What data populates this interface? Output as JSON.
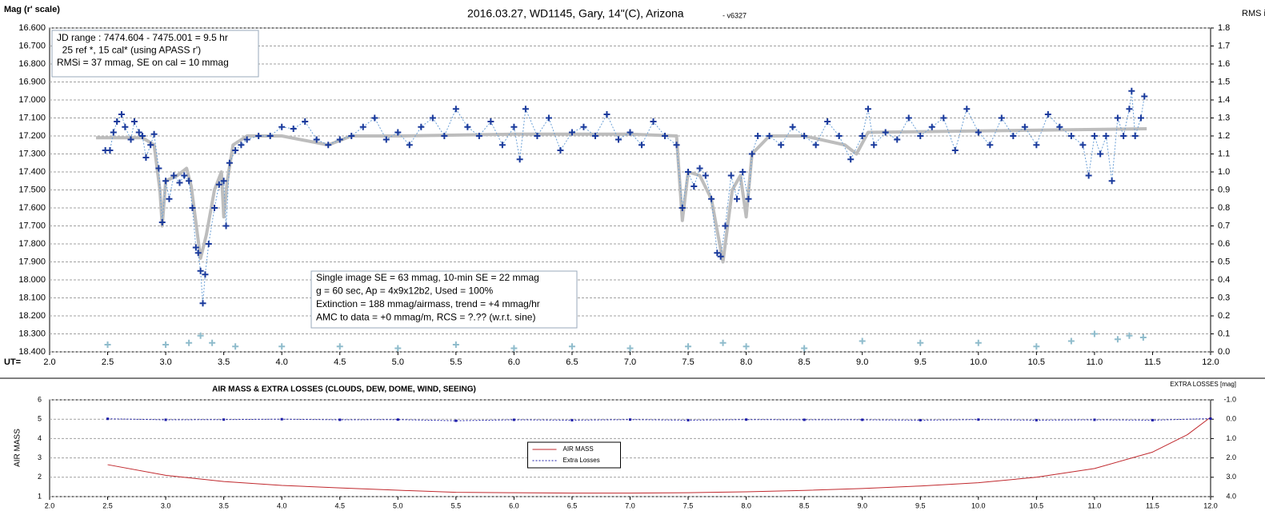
{
  "chart_data": [
    {
      "type": "line",
      "title": "2016.03.27,  WD1145, Gary, 14\"(C), Arizona",
      "subtitle": "- v6327",
      "ylabel": "Mag (r' scale)",
      "y2label": "RMS i",
      "xlabel": "UT=",
      "annotations": [
        {
          "lines": [
            "JD range : 7474.604 - 7475.001 = 9.5 hr",
            "  25 ref *, 15 cal* (using APASS r')",
            "RMSi = 37 mmag, SE on cal = 10 mmag"
          ]
        },
        {
          "lines": [
            "Single image SE = 63 mmag, 10-min SE = 22 mmag",
            "g = 60 sec, Ap = 4x9x12b2, Used = 100%",
            "Extinction = 188 mmag/airmass, trend = +4 mmag/hr",
            "AMC to data = +0 mmag/m, RCS = ?.?? (w.r.t. sine)"
          ]
        }
      ],
      "xlim": [
        2,
        12
      ],
      "xticks": [
        {
          "value": 2,
          "label": "2.0"
        },
        2.5,
        {
          "value": 3,
          "label": "3.0"
        },
        3.5,
        {
          "value": 4,
          "label": "4.0"
        },
        4.5,
        {
          "value": 5,
          "label": "5.0"
        },
        5.5,
        {
          "value": 6,
          "label": "6.0"
        },
        6.5,
        {
          "value": 7,
          "label": "7.0"
        },
        7.5,
        {
          "value": 8,
          "label": "8.0"
        },
        8.5,
        {
          "value": 9,
          "label": "9.0"
        },
        9.5,
        {
          "value": 10,
          "label": "10.0"
        },
        10.5,
        {
          "value": 11,
          "label": "11.0"
        },
        11.5,
        {
          "value": 12,
          "label": "12.0"
        }
      ],
      "ylim": [
        18.4,
        16.6
      ],
      "yticks": [
        {
          "value": 16.6,
          "label": "16.600"
        },
        {
          "value": 16.7,
          "label": "16.700"
        },
        {
          "value": 16.8,
          "label": "16.800"
        },
        {
          "value": 16.9,
          "label": "16.900"
        },
        {
          "value": 17.0,
          "label": "17.000"
        },
        {
          "value": 17.1,
          "label": "17.100"
        },
        {
          "value": 17.2,
          "label": "17.200"
        },
        {
          "value": 17.3,
          "label": "17.300"
        },
        {
          "value": 17.4,
          "label": "17.400"
        },
        {
          "value": 17.5,
          "label": "17.500"
        },
        {
          "value": 17.6,
          "label": "17.600"
        },
        {
          "value": 17.7,
          "label": "17.700"
        },
        {
          "value": 17.8,
          "label": "17.800"
        },
        {
          "value": 17.9,
          "label": "17.900"
        },
        {
          "value": 18.0,
          "label": "18.000"
        },
        {
          "value": 18.1,
          "label": "18.100"
        },
        {
          "value": 18.2,
          "label": "18.200"
        },
        {
          "value": 18.3,
          "label": "18.300"
        },
        {
          "value": 18.4,
          "label": "18.400"
        }
      ],
      "y2lim": [
        0,
        1.8
      ],
      "y2ticks": [
        {
          "value": 0,
          "label": "0.0"
        },
        0.1,
        0.2,
        0.3,
        0.4,
        0.5,
        0.6,
        0.7,
        0.8,
        0.9,
        {
          "value": 1,
          "label": "1.0"
        },
        1.1,
        1.2,
        1.3,
        1.4,
        1.5,
        1.6,
        1.7,
        1.8
      ],
      "grid": "horizontal",
      "series": [
        {
          "color": "#bdbdbd",
          "marker": "none",
          "line": "solid",
          "line_width": 4,
          "x": [
            2.4,
            2.8,
            2.9,
            2.95,
            2.97,
            3.0,
            3.1,
            3.18,
            3.22,
            3.3,
            3.35,
            3.42,
            3.48,
            3.5,
            3.53,
            3.58,
            3.7,
            4.0,
            4.4,
            4.6,
            5.0,
            6.0,
            7.0,
            7.4,
            7.45,
            7.5,
            7.6,
            7.7,
            7.8,
            7.88,
            7.95,
            8.0,
            8.05,
            8.2,
            8.5,
            8.85,
            8.95,
            9.05,
            11.45
          ],
          "values": [
            17.21,
            17.21,
            17.25,
            17.5,
            17.7,
            17.45,
            17.42,
            17.38,
            17.48,
            17.88,
            17.75,
            17.5,
            17.4,
            17.65,
            17.45,
            17.25,
            17.2,
            17.2,
            17.25,
            17.2,
            17.2,
            17.19,
            17.19,
            17.2,
            17.67,
            17.4,
            17.42,
            17.55,
            17.9,
            17.5,
            17.42,
            17.65,
            17.3,
            17.2,
            17.2,
            17.25,
            17.3,
            17.18,
            17.16
          ]
        },
        {
          "color": "#1a3a9c",
          "line_color": "#6a9fd6",
          "marker": "plus",
          "line": "dotted",
          "line_width": 1,
          "x": [
            2.48,
            2.52,
            2.55,
            2.58,
            2.62,
            2.65,
            2.7,
            2.73,
            2.77,
            2.8,
            2.83,
            2.87,
            2.9,
            2.94,
            2.97,
            3.0,
            3.03,
            3.07,
            3.12,
            3.16,
            3.2,
            3.23,
            3.26,
            3.28,
            3.3,
            3.32,
            3.34,
            3.37,
            3.42,
            3.46,
            3.5,
            3.52,
            3.55,
            3.6,
            3.65,
            3.7,
            3.8,
            3.9,
            4.0,
            4.1,
            4.2,
            4.3,
            4.4,
            4.5,
            4.6,
            4.7,
            4.8,
            4.9,
            5.0,
            5.1,
            5.2,
            5.3,
            5.4,
            5.5,
            5.6,
            5.7,
            5.8,
            5.9,
            6.0,
            6.05,
            6.1,
            6.2,
            6.3,
            6.4,
            6.5,
            6.6,
            6.7,
            6.8,
            6.9,
            7.0,
            7.1,
            7.2,
            7.3,
            7.4,
            7.45,
            7.5,
            7.55,
            7.6,
            7.65,
            7.7,
            7.75,
            7.78,
            7.82,
            7.87,
            7.92,
            7.97,
            8.02,
            8.05,
            8.1,
            8.2,
            8.3,
            8.4,
            8.5,
            8.6,
            8.7,
            8.8,
            8.9,
            9.0,
            9.05,
            9.1,
            9.2,
            9.3,
            9.4,
            9.5,
            9.6,
            9.7,
            9.8,
            9.9,
            10.0,
            10.1,
            10.2,
            10.3,
            10.4,
            10.5,
            10.6,
            10.7,
            10.8,
            10.9,
            10.95,
            11.0,
            11.05,
            11.1,
            11.15,
            11.2,
            11.25,
            11.3,
            11.32,
            11.35,
            11.4,
            11.43
          ],
          "values": [
            17.28,
            17.28,
            17.18,
            17.12,
            17.08,
            17.15,
            17.22,
            17.12,
            17.18,
            17.2,
            17.32,
            17.25,
            17.19,
            17.38,
            17.68,
            17.45,
            17.55,
            17.42,
            17.46,
            17.42,
            17.45,
            17.6,
            17.82,
            17.85,
            17.95,
            18.13,
            17.97,
            17.8,
            17.6,
            17.47,
            17.45,
            17.7,
            17.35,
            17.28,
            17.25,
            17.22,
            17.2,
            17.2,
            17.15,
            17.16,
            17.12,
            17.22,
            17.25,
            17.22,
            17.2,
            17.15,
            17.1,
            17.22,
            17.18,
            17.25,
            17.15,
            17.1,
            17.2,
            17.05,
            17.15,
            17.2,
            17.12,
            17.25,
            17.15,
            17.33,
            17.05,
            17.2,
            17.1,
            17.28,
            17.18,
            17.15,
            17.2,
            17.08,
            17.22,
            17.18,
            17.25,
            17.12,
            17.2,
            17.25,
            17.6,
            17.4,
            17.48,
            17.38,
            17.42,
            17.55,
            17.85,
            17.87,
            17.7,
            17.42,
            17.55,
            17.4,
            17.55,
            17.3,
            17.2,
            17.2,
            17.25,
            17.15,
            17.2,
            17.25,
            17.12,
            17.2,
            17.33,
            17.2,
            17.05,
            17.25,
            17.18,
            17.22,
            17.1,
            17.2,
            17.15,
            17.1,
            17.28,
            17.05,
            17.18,
            17.25,
            17.1,
            17.2,
            17.15,
            17.25,
            17.08,
            17.15,
            17.2,
            17.25,
            17.42,
            17.2,
            17.3,
            17.2,
            17.45,
            17.1,
            17.2,
            17.05,
            16.95,
            17.2,
            17.1,
            16.98
          ]
        },
        {
          "color": "#8fbccc",
          "marker": "plus",
          "line": "none",
          "axis": "y2",
          "x": [
            2.5,
            3.0,
            3.2,
            3.3,
            3.4,
            3.6,
            4.0,
            4.5,
            5.0,
            5.5,
            6.0,
            6.5,
            7.0,
            7.5,
            7.8,
            8.0,
            8.5,
            9.0,
            9.5,
            10.0,
            10.5,
            10.8,
            11.0,
            11.2,
            11.3,
            11.42
          ],
          "values": [
            0.04,
            0.04,
            0.05,
            0.09,
            0.05,
            0.03,
            0.03,
            0.03,
            0.02,
            0.04,
            0.02,
            0.03,
            0.02,
            0.03,
            0.05,
            0.03,
            0.02,
            0.06,
            0.05,
            0.05,
            0.03,
            0.06,
            0.1,
            0.07,
            0.09,
            0.08
          ]
        }
      ]
    },
    {
      "type": "line",
      "title": "AIR MASS & EXTRA LOSSES (CLOUDS, DEW, DOME, WIND, SEEING)",
      "ylabel": "AIR MASS",
      "y2label": "EXTRA LOSSES [mag]",
      "legend": "center",
      "xlim": [
        2,
        12
      ],
      "xticks": [
        {
          "value": 2,
          "label": "2.0"
        },
        2.5,
        {
          "value": 3,
          "label": "3.0"
        },
        3.5,
        {
          "value": 4,
          "label": "4.0"
        },
        4.5,
        {
          "value": 5,
          "label": "5.0"
        },
        5.5,
        {
          "value": 6,
          "label": "6.0"
        },
        6.5,
        {
          "value": 7,
          "label": "7.0"
        },
        7.5,
        {
          "value": 8,
          "label": "8.0"
        },
        8.5,
        {
          "value": 9,
          "label": "9.0"
        },
        9.5,
        {
          "value": 10,
          "label": "10.0"
        },
        10.5,
        {
          "value": 11,
          "label": "11.0"
        },
        11.5,
        {
          "value": 12,
          "label": "12.0"
        }
      ],
      "ylim": [
        1,
        6
      ],
      "yticks": [
        1,
        2,
        3,
        4,
        5,
        6
      ],
      "y2lim": [
        4,
        -1
      ],
      "y2ticks": [
        {
          "value": -1,
          "label": "-1.0"
        },
        {
          "value": 0,
          "label": "0.0"
        },
        {
          "value": 1,
          "label": "1.0"
        },
        {
          "value": 2,
          "label": "2.0"
        },
        {
          "value": 3,
          "label": "3.0"
        },
        {
          "value": 4,
          "label": "4.0"
        }
      ],
      "grid": "horizontal",
      "series": [
        {
          "name": "AIR MASS",
          "color": "#c0282d",
          "marker": "none",
          "line": "solid",
          "line_width": 1,
          "x": [
            2.5,
            3.0,
            3.5,
            4.0,
            4.5,
            5.0,
            5.5,
            6.0,
            6.5,
            7.0,
            7.5,
            8.0,
            8.5,
            9.0,
            9.5,
            10.0,
            10.5,
            11.0,
            11.5,
            11.8,
            12.0
          ],
          "values": [
            2.65,
            2.1,
            1.78,
            1.58,
            1.45,
            1.33,
            1.22,
            1.2,
            1.18,
            1.18,
            1.2,
            1.25,
            1.32,
            1.42,
            1.55,
            1.72,
            2.0,
            2.45,
            3.3,
            4.2,
            5.1
          ]
        },
        {
          "name": "Extra Losses",
          "color": "#1a1aa8",
          "marker": "dot",
          "line": "dotted",
          "line_width": 1,
          "axis": "y2",
          "x": [
            2.5,
            3.0,
            3.5,
            4.0,
            4.5,
            5.0,
            5.5,
            6.0,
            6.5,
            7.0,
            7.5,
            8.0,
            8.5,
            9.0,
            9.5,
            10.0,
            10.5,
            11.0,
            11.5,
            12.0
          ],
          "values": [
            -0.02,
            0.03,
            0.02,
            0.0,
            0.03,
            0.02,
            0.08,
            0.03,
            0.05,
            0.02,
            0.05,
            0.02,
            0.03,
            0.03,
            0.05,
            0.02,
            0.05,
            0.03,
            0.05,
            -0.03
          ]
        }
      ]
    }
  ]
}
